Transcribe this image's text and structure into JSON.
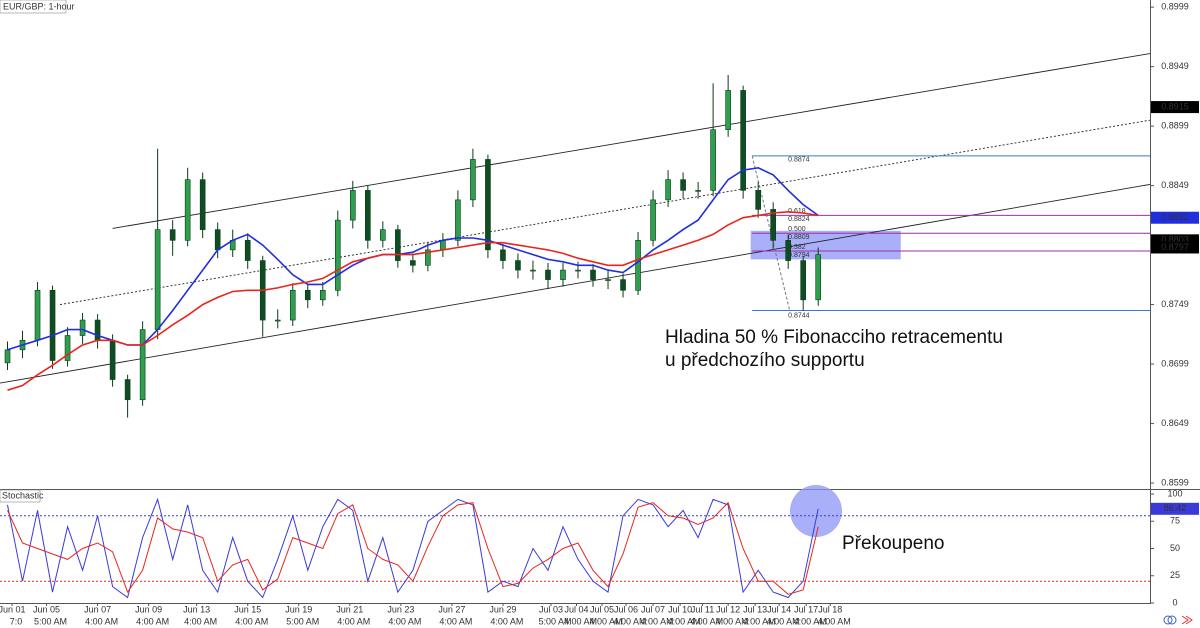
{
  "chart_data": [
    {
      "type": "candlestick",
      "title": "EUR/GBP: 1-hour",
      "xlim": [
        0,
        76.6
      ],
      "ylim": [
        0.8594,
        0.9005
      ],
      "yticks": [
        0.8999,
        0.8949,
        0.8899,
        0.8849,
        0.8749,
        0.8699,
        0.8649,
        0.8599
      ],
      "up_color": "#2f9e4f",
      "down_color": "#0f4d22",
      "candles": {
        "open": [
          0.87,
          0.8711,
          0.8719,
          0.8761,
          0.8702,
          0.8723,
          0.8736,
          0.8719,
          0.8686,
          0.8669,
          0.8728,
          0.8812,
          0.8803,
          0.8854,
          0.8812,
          0.8795,
          0.8803,
          0.8786,
          0.8736,
          0.8736,
          0.8761,
          0.8753,
          0.8761,
          0.882,
          0.8845,
          0.8803,
          0.8812,
          0.8786,
          0.8782,
          0.8795,
          0.8803,
          0.8837,
          0.8871,
          0.8795,
          0.8786,
          0.8778,
          0.8778,
          0.877,
          0.8778,
          0.8778,
          0.877,
          0.877,
          0.8761,
          0.8803,
          0.8837,
          0.8854,
          0.8845,
          0.8845,
          0.8896,
          0.8929,
          0.8845,
          0.8829,
          0.8803,
          0.8786,
          0.8753
        ],
        "high": [
          0.8718,
          0.8727,
          0.8768,
          0.8765,
          0.873,
          0.8742,
          0.8741,
          0.8724,
          0.869,
          0.8735,
          0.888,
          0.882,
          0.8864,
          0.886,
          0.8818,
          0.8812,
          0.8809,
          0.879,
          0.8745,
          0.8767,
          0.8766,
          0.8768,
          0.8828,
          0.8853,
          0.8849,
          0.8819,
          0.8816,
          0.8792,
          0.8801,
          0.8809,
          0.8845,
          0.888,
          0.8875,
          0.88,
          0.8792,
          0.8786,
          0.8784,
          0.8784,
          0.8785,
          0.8783,
          0.8778,
          0.8775,
          0.881,
          0.8845,
          0.8862,
          0.886,
          0.8852,
          0.8935,
          0.8942,
          0.8933,
          0.8852,
          0.8835,
          0.8808,
          0.879,
          0.8797
        ],
        "low": [
          0.8694,
          0.8704,
          0.8714,
          0.8695,
          0.8697,
          0.8716,
          0.8712,
          0.868,
          0.8654,
          0.8664,
          0.872,
          0.879,
          0.8798,
          0.8805,
          0.8788,
          0.8789,
          0.8779,
          0.8722,
          0.8729,
          0.8731,
          0.8746,
          0.8748,
          0.8756,
          0.8813,
          0.8796,
          0.8797,
          0.878,
          0.8776,
          0.8777,
          0.8789,
          0.8798,
          0.8831,
          0.8788,
          0.8779,
          0.8771,
          0.877,
          0.8762,
          0.8764,
          0.8771,
          0.8764,
          0.8762,
          0.8755,
          0.8757,
          0.8798,
          0.8831,
          0.8838,
          0.8838,
          0.884,
          0.889,
          0.8838,
          0.8822,
          0.8796,
          0.8779,
          0.8744,
          0.8748
        ],
        "close": [
          0.8711,
          0.8719,
          0.8761,
          0.8702,
          0.8723,
          0.8736,
          0.8719,
          0.8686,
          0.8669,
          0.8728,
          0.8812,
          0.8803,
          0.8854,
          0.8812,
          0.8795,
          0.8803,
          0.8786,
          0.8736,
          0.8736,
          0.8761,
          0.8753,
          0.8761,
          0.882,
          0.8845,
          0.8803,
          0.8812,
          0.8786,
          0.8782,
          0.8795,
          0.8803,
          0.8837,
          0.8871,
          0.8795,
          0.8786,
          0.8778,
          0.8778,
          0.877,
          0.8778,
          0.8778,
          0.877,
          0.877,
          0.8761,
          0.8803,
          0.8837,
          0.8854,
          0.8845,
          0.8845,
          0.8896,
          0.8929,
          0.8845,
          0.8829,
          0.8803,
          0.8786,
          0.8753,
          0.8791
        ]
      },
      "series": [
        {
          "color": "#1f2fe0",
          "values": [
            0.8711,
            0.8715,
            0.8719,
            0.8723,
            0.8728,
            0.8728,
            0.8723,
            0.8719,
            0.8715,
            0.8715,
            0.8728,
            0.8744,
            0.8761,
            0.8778,
            0.8795,
            0.8803,
            0.8808,
            0.8799,
            0.8787,
            0.8774,
            0.8766,
            0.8766,
            0.8774,
            0.8782,
            0.8788,
            0.8791,
            0.8791,
            0.8793,
            0.8799,
            0.8803,
            0.8805,
            0.8805,
            0.8803,
            0.8799,
            0.8795,
            0.8791,
            0.8787,
            0.8785,
            0.8782,
            0.8782,
            0.8778,
            0.8776,
            0.8785,
            0.8795,
            0.8803,
            0.8812,
            0.882,
            0.8837,
            0.8854,
            0.8862,
            0.8864,
            0.8858,
            0.8845,
            0.8833,
            0.8824
          ]
        },
        {
          "color": "#e8261c",
          "values": [
            0.8677,
            0.8681,
            0.869,
            0.8698,
            0.8707,
            0.8715,
            0.8719,
            0.8719,
            0.8715,
            0.8715,
            0.8723,
            0.8732,
            0.874,
            0.8749,
            0.8755,
            0.876,
            0.8761,
            0.8761,
            0.8763,
            0.8766,
            0.8768,
            0.8771,
            0.8778,
            0.8785,
            0.8788,
            0.8791,
            0.8791,
            0.8791,
            0.8793,
            0.8795,
            0.8797,
            0.8799,
            0.8801,
            0.8801,
            0.8799,
            0.8797,
            0.8795,
            0.8792,
            0.8788,
            0.8785,
            0.8782,
            0.8782,
            0.8787,
            0.8791,
            0.8795,
            0.8799,
            0.8803,
            0.8808,
            0.8816,
            0.8822,
            0.8824,
            0.8826,
            0.8827,
            0.8826,
            0.8824
          ]
        }
      ],
      "trendlines": [
        {
          "style": "solid",
          "x": [
            0,
            76.6
          ],
          "y": [
            0.8683,
            0.885
          ]
        },
        {
          "style": "dotted",
          "x": [
            4,
            76.6
          ],
          "y": [
            0.8749,
            0.8904
          ]
        },
        {
          "style": "solid",
          "x": [
            7.5,
            76.6
          ],
          "y": [
            0.8813,
            0.896
          ]
        }
      ],
      "fibonacci": {
        "x": [
          50.1,
          52.6
        ],
        "high": 0.8874,
        "low": 0.8744,
        "color": "#3b78c9",
        "level_color": "#9b2fae",
        "levels": [
          {
            "ratio": 0.618,
            "price": 0.8824
          },
          {
            "ratio": {
              "value": 0.5,
              "label": "0.500"
            },
            "price": 0.8809
          },
          {
            "ratio": 0.382,
            "price": 0.8794
          }
        ]
      },
      "highlight_box": {
        "x": [
          50,
          60
        ],
        "y": [
          0.8787,
          0.8811
        ],
        "color": "#8c94f5"
      },
      "price_markers": [
        {
          "value": 0.8915,
          "color": "#000000"
        },
        {
          "value": 0.8822,
          "color": "#1f2fe0"
        },
        {
          "value": 0.8803,
          "color": "#000000"
        },
        {
          "value": 0.8797,
          "color": "#000000"
        }
      ],
      "annotations": [
        "Hladina 50 % Fibonacciho retracementu",
        "u předchozího supportu"
      ]
    },
    {
      "type": "line",
      "title": "Stochastic",
      "xlim": [
        0,
        76.6
      ],
      "ylim": [
        0,
        100
      ],
      "yticks": [
        0,
        25,
        50,
        75,
        100
      ],
      "xticks": [
        {
          "value": 0.8,
          "label": "Jun 01"
        },
        {
          "value": 3.1,
          "label": "Jun 05"
        },
        {
          "value": 6.5,
          "label": "Jun 07"
        },
        {
          "value": 9.9,
          "label": "Jun 09"
        },
        {
          "value": 13.1,
          "label": "Jun 13"
        },
        {
          "value": 16.5,
          "label": "Jun 15"
        },
        {
          "value": 19.9,
          "label": "Jun 19"
        },
        {
          "value": 23.3,
          "label": "Jun 21"
        },
        {
          "value": 26.7,
          "label": "Jun 23"
        },
        {
          "value": 30.1,
          "label": "Jun 27"
        },
        {
          "value": 33.5,
          "label": "Jun 29"
        },
        {
          "value": 36.7,
          "label": "Jul 03"
        },
        {
          "value": 38.4,
          "label": "Jul 04"
        },
        {
          "value": 40.1,
          "label": "Jul 05"
        },
        {
          "value": 41.7,
          "label": "Jul 06"
        },
        {
          "value": 43.5,
          "label": "Jul 07"
        },
        {
          "value": 45.3,
          "label": "Jul 10"
        },
        {
          "value": 46.8,
          "label": "Jul 11"
        },
        {
          "value": 48.5,
          "label": "Jul 12"
        },
        {
          "value": 50.3,
          "label": "Jul 13"
        },
        {
          "value": 51.9,
          "label": "Jul 14"
        },
        {
          "value": 53.7,
          "label": "Jul 17"
        },
        {
          "value": 55.3,
          "label": "Jul 18"
        }
      ],
      "xtick_times": [
        "7:0",
        "5:00 AM",
        "4:00 AM",
        "4:00 AM",
        "4:00 AM",
        "4:00 AM",
        "5:00 AM",
        "4:00 AM",
        "4:00 AM",
        "4:00 AM",
        "4:00 AM",
        "5:00 AM",
        "4:00 AM",
        "4:00 AM",
        "4:00 AM",
        "4:00 AM",
        "4:00 AM",
        "4:00 AM",
        "4:00 AM",
        "4:00 AM",
        "4:00 AM",
        "4:00 AM",
        "4:00 AM"
      ],
      "series": [
        {
          "color": "#3a3ad8",
          "values": [
            90,
            20,
            85,
            10,
            70,
            30,
            80,
            15,
            5,
            60,
            95,
            40,
            90,
            30,
            10,
            60,
            20,
            5,
            40,
            80,
            30,
            70,
            95,
            85,
            20,
            60,
            10,
            30,
            75,
            85,
            95,
            90,
            10,
            20,
            15,
            50,
            30,
            70,
            40,
            20,
            10,
            80,
            95,
            90,
            70,
            85,
            60,
            95,
            90,
            10,
            30,
            10,
            5,
            20,
            86.42
          ]
        },
        {
          "color": "#e8261c",
          "values": [
            85,
            55,
            50,
            45,
            40,
            50,
            55,
            47,
            10,
            30,
            78,
            68,
            65,
            60,
            20,
            35,
            40,
            12,
            22,
            60,
            55,
            50,
            82,
            90,
            50,
            40,
            35,
            20,
            52,
            80,
            90,
            92,
            50,
            15,
            18,
            32,
            40,
            50,
            55,
            30,
            15,
            45,
            88,
            92,
            80,
            78,
            72,
            78,
            92,
            50,
            20,
            20,
            8,
            12,
            70
          ]
        }
      ],
      "levels": [
        {
          "value": 80,
          "color": "#3a3ad8"
        },
        {
          "value": 20,
          "color": "#e8261c"
        }
      ],
      "annotation": "Překoupeno"
    }
  ]
}
